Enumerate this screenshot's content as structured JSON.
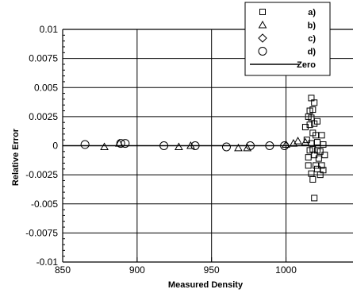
{
  "chart_data": {
    "type": "scatter",
    "title": "",
    "xlabel": "Measured Density",
    "ylabel": "Relative Error",
    "xlim": [
      850,
      1045
    ],
    "ylim": [
      -0.01,
      0.01
    ],
    "xticks": [
      850,
      900,
      950,
      1000
    ],
    "yticks": [
      0.01,
      0.0075,
      0.005,
      0.0025,
      0,
      -0.0025,
      -0.005,
      -0.0075,
      -0.01
    ],
    "xtick_labels": [
      "850",
      "900",
      "950",
      "1000"
    ],
    "ytick_labels": [
      "0.01",
      "0.0075",
      "0.005",
      "0.0025",
      "0",
      "-0.0025",
      "-0.005",
      "-0.0075",
      "-0.01"
    ],
    "grid": true,
    "legend_position": "top-right",
    "legend": [
      {
        "label": "a)",
        "marker": "square"
      },
      {
        "label": "b)",
        "marker": "triangle"
      },
      {
        "label": "c)",
        "marker": "diamond"
      },
      {
        "label": "d)",
        "marker": "circle"
      },
      {
        "label": "Zero",
        "marker": "line"
      }
    ],
    "series": [
      {
        "name": "a)",
        "marker": "square",
        "points": [
          [
            1017,
            0.0041
          ],
          [
            1019,
            0.0037
          ],
          [
            1016,
            0.003
          ],
          [
            1018,
            0.0031
          ],
          [
            1015,
            0.0025
          ],
          [
            1017,
            0.0024
          ],
          [
            1013,
            0.0016
          ],
          [
            1016,
            0.0018
          ],
          [
            1019,
            0.0019
          ],
          [
            1021,
            0.0021
          ],
          [
            1018,
            0.0011
          ],
          [
            1020,
            0.0009
          ],
          [
            1024,
            0.0009
          ],
          [
            1014,
            0.0005
          ],
          [
            1017,
            0.0002
          ],
          [
            1021,
            0.0003
          ],
          [
            1025,
            0.0001
          ],
          [
            1016,
            -0.0004
          ],
          [
            1018,
            -0.0003
          ],
          [
            1021,
            -0.0004
          ],
          [
            1019,
            -0.0008
          ],
          [
            1023,
            -0.0005
          ],
          [
            1015,
            -0.001
          ],
          [
            1022,
            -0.0011
          ],
          [
            1026,
            -0.0008
          ],
          [
            1020,
            -0.0017
          ],
          [
            1024,
            -0.0017
          ],
          [
            1015,
            -0.0017
          ],
          [
            1021,
            -0.002
          ],
          [
            1025,
            -0.0021
          ],
          [
            1017,
            -0.0024
          ],
          [
            1023,
            -0.0025
          ],
          [
            1018,
            -0.0029
          ],
          [
            1019,
            -0.0045
          ]
        ]
      },
      {
        "name": "b)",
        "marker": "triangle",
        "points": [
          [
            878,
            -0.0001
          ],
          [
            888,
            0.0002
          ],
          [
            928,
            -0.0001
          ],
          [
            936,
            0
          ],
          [
            968,
            -0.0002
          ],
          [
            974,
            -0.0002
          ],
          [
            1000,
            0.0001
          ],
          [
            1005,
            0.0002
          ],
          [
            1008,
            0.0004
          ],
          [
            1013,
            0.0003
          ]
        ]
      },
      {
        "name": "c)",
        "marker": "diamond",
        "points": []
      },
      {
        "name": "d)",
        "marker": "circle",
        "points": [
          [
            865,
            0.0001
          ],
          [
            889,
            0.0002
          ],
          [
            892,
            0.0002
          ],
          [
            918,
            0
          ],
          [
            939,
            0
          ],
          [
            960,
            -0.0001
          ],
          [
            976,
            0
          ],
          [
            989,
            0
          ],
          [
            999,
            0
          ]
        ]
      }
    ],
    "reference_line": {
      "name": "Zero",
      "y": 0
    }
  },
  "colors": {
    "background": "#ffffff",
    "foreground": "#000000"
  }
}
